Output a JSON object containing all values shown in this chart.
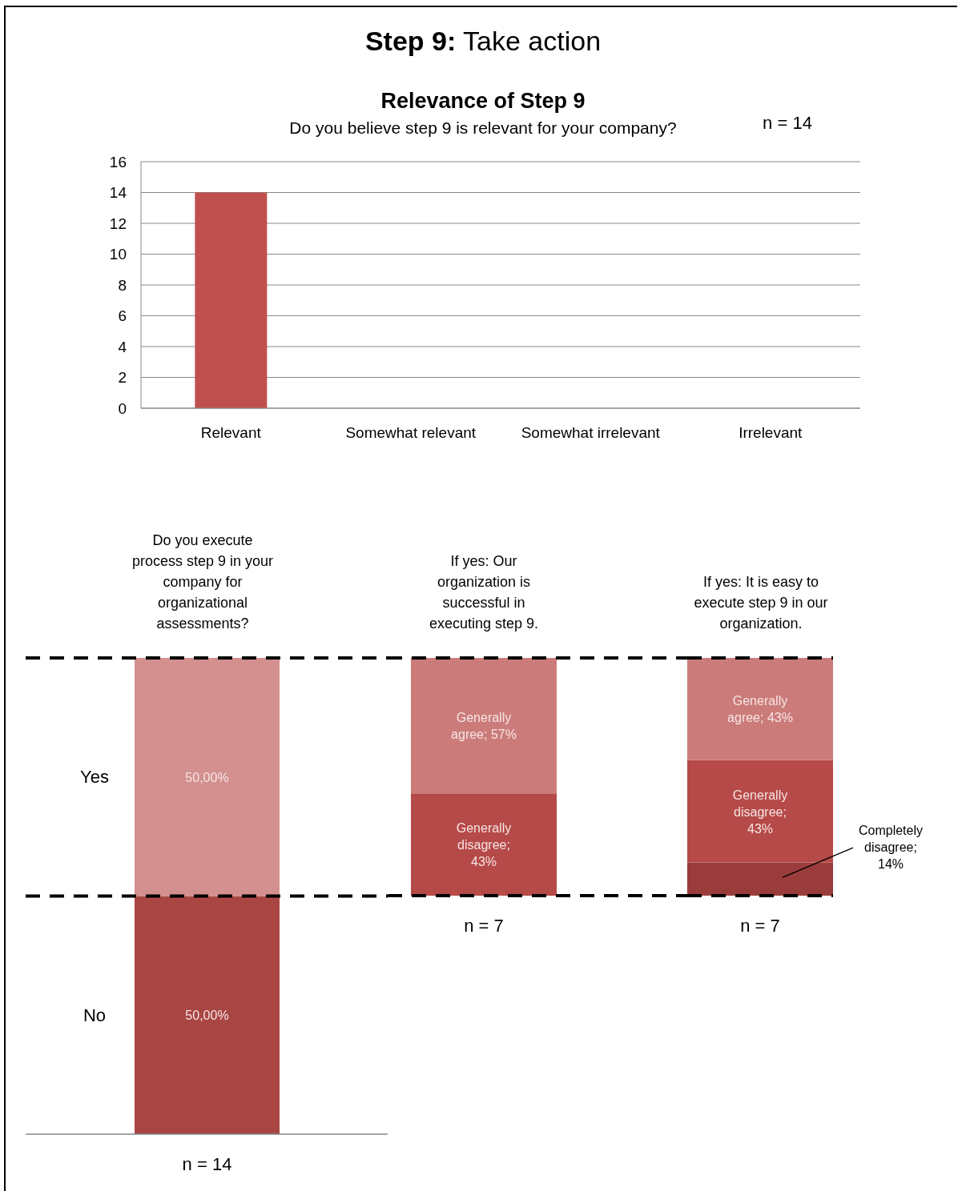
{
  "chart_data": [
    {
      "type": "bar",
      "title": "Relevance of Step 9",
      "subtitle": "Do you believe step 9 is relevant for your company?",
      "annotations": [
        "Step 9: Take action",
        "n = 14"
      ],
      "categories": [
        "Relevant",
        "Somewhat relevant",
        "Somewhat irrelevant",
        "Irrelevant"
      ],
      "values": [
        14,
        0,
        0,
        0
      ],
      "color": "#c0504d",
      "ylim": [
        0,
        16
      ],
      "yticks": [
        0,
        2,
        4,
        6,
        8,
        10,
        12,
        14,
        16
      ],
      "grid": "y"
    },
    {
      "type": "bar",
      "stacked": true,
      "title": "Do you execute process step 9 in your company for organizational assessments?",
      "categories": [
        null
      ],
      "ylim": [
        0,
        100
      ],
      "series": [
        {
          "name": "No",
          "color": "#a94644",
          "values": [
            50
          ],
          "value_labels": [
            "50,00%"
          ]
        },
        {
          "name": "Yes",
          "color": "#d3908f",
          "values": [
            50
          ],
          "value_labels": [
            "50,00%"
          ]
        }
      ],
      "ref_lines": [
        {
          "axis": "y",
          "value": 50,
          "color": "#000000",
          "line_style": "dashed"
        },
        {
          "axis": "y",
          "value": 100,
          "color": "#000000",
          "line_style": "dashed"
        }
      ],
      "annotations": [
        "n = 14"
      ]
    },
    {
      "type": "bar",
      "stacked": true,
      "title": "If yes: Our organization is successful in executing step 9.",
      "categories": [
        null
      ],
      "ylim": [
        0,
        100
      ],
      "series": [
        {
          "color": "#b54a48",
          "values": [
            43
          ],
          "value_labels": [
            "Generally disagree; 43%"
          ]
        },
        {
          "color": "#cb7c7a",
          "values": [
            57
          ],
          "value_labels": [
            "Generally agree; 57%"
          ]
        }
      ],
      "ref_lines": [
        {
          "axis": "y",
          "value": 0,
          "color": "#000000",
          "line_style": "dashed"
        },
        {
          "axis": "y",
          "value": 100,
          "color": "#000000",
          "line_style": "dashed"
        }
      ],
      "annotations": [
        "n = 7"
      ]
    },
    {
      "type": "bar",
      "stacked": true,
      "title": "If yes: It is easy to execute step 9 in our organization.",
      "categories": [
        null
      ],
      "ylim": [
        0,
        100
      ],
      "series": [
        {
          "color": "#9a3c3b",
          "values": [
            14
          ],
          "value_labels": [
            "Completely disagree; 14%"
          ]
        },
        {
          "color": "#b54a48",
          "values": [
            43
          ],
          "value_labels": [
            "Generally disagree; 43%"
          ]
        },
        {
          "color": "#cb7c7a",
          "values": [
            43
          ],
          "value_labels": [
            "Generally agree; 43%"
          ]
        }
      ],
      "ref_lines": [
        {
          "axis": "y",
          "value": 0,
          "color": "#000000",
          "line_style": "dashed"
        },
        {
          "axis": "y",
          "value": 100,
          "color": "#000000",
          "line_style": "dashed"
        }
      ],
      "annotations": [
        "n = 7"
      ]
    }
  ]
}
